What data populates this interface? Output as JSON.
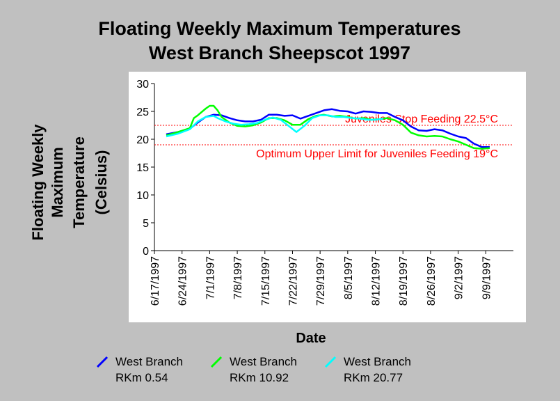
{
  "chart_data": {
    "type": "line",
    "title": [
      "Floating Weekly Maximum Temperatures",
      "West Branch Sheepscot 1997"
    ],
    "ylabel": [
      "Floating Weekly",
      "Maximum",
      "Temperature",
      "(Celsius)"
    ],
    "xlabel": "Date",
    "ylim": [
      0,
      30
    ],
    "yticks": [
      0,
      5,
      10,
      15,
      20,
      25,
      30
    ],
    "xlim": [
      "1997-06-17",
      "1997-09-16"
    ],
    "xticks": [
      {
        "date": "1997-06-17",
        "label": "6/17/1997"
      },
      {
        "date": "1997-06-24",
        "label": "6/24/1997"
      },
      {
        "date": "1997-07-01",
        "label": "7/1/1997"
      },
      {
        "date": "1997-07-08",
        "label": "7/8/1997"
      },
      {
        "date": "1997-07-15",
        "label": "7/15/1997"
      },
      {
        "date": "1997-07-22",
        "label": "7/22/1997"
      },
      {
        "date": "1997-07-29",
        "label": "7/29/1997"
      },
      {
        "date": "1997-08-05",
        "label": "8/5/1997"
      },
      {
        "date": "1997-08-12",
        "label": "8/12/1997"
      },
      {
        "date": "1997-08-19",
        "label": "8/19/1997"
      },
      {
        "date": "1997-08-26",
        "label": "8/26/1997"
      },
      {
        "date": "1997-09-02",
        "label": "9/2/1997"
      },
      {
        "date": "1997-09-09",
        "label": "9/9/1997"
      }
    ],
    "grid": false,
    "legend_position": "bottom",
    "reference_lines": [
      {
        "y": 22.5,
        "label": "Juveniles Stop Feeding 22.5°C",
        "color": "#ff0000"
      },
      {
        "y": 19,
        "label": "Optimum Upper Limit for Juveniles Feeding 19°C",
        "color": "#ff0000"
      }
    ],
    "series": [
      {
        "name": [
          "West Branch",
          "RKm 0.54"
        ],
        "color": "#0000ff",
        "points": [
          [
            "1997-06-20",
            20.9
          ],
          [
            "1997-06-23",
            21.3
          ],
          [
            "1997-06-25",
            21.7
          ],
          [
            "1997-06-26",
            21.9
          ],
          [
            "1997-06-28",
            23.0
          ],
          [
            "1997-06-30",
            24.0
          ],
          [
            "1997-07-02",
            24.4
          ],
          [
            "1997-07-04",
            24.3
          ],
          [
            "1997-07-06",
            23.8
          ],
          [
            "1997-07-08",
            23.4
          ],
          [
            "1997-07-10",
            23.2
          ],
          [
            "1997-07-12",
            23.2
          ],
          [
            "1997-07-14",
            23.5
          ],
          [
            "1997-07-16",
            24.4
          ],
          [
            "1997-07-18",
            24.4
          ],
          [
            "1997-07-20",
            24.2
          ],
          [
            "1997-07-22",
            24.3
          ],
          [
            "1997-07-24",
            23.7
          ],
          [
            "1997-07-26",
            24.2
          ],
          [
            "1997-07-28",
            24.7
          ],
          [
            "1997-07-30",
            25.2
          ],
          [
            "1997-08-01",
            25.4
          ],
          [
            "1997-08-03",
            25.1
          ],
          [
            "1997-08-05",
            25.0
          ],
          [
            "1997-08-07",
            24.6
          ],
          [
            "1997-08-09",
            25.0
          ],
          [
            "1997-08-11",
            24.9
          ],
          [
            "1997-08-13",
            24.7
          ],
          [
            "1997-08-15",
            24.7
          ],
          [
            "1997-08-17",
            24.0
          ],
          [
            "1997-08-19",
            23.4
          ],
          [
            "1997-08-21",
            22.3
          ],
          [
            "1997-08-23",
            21.6
          ],
          [
            "1997-08-25",
            21.5
          ],
          [
            "1997-08-27",
            21.8
          ],
          [
            "1997-08-29",
            21.6
          ],
          [
            "1997-08-31",
            21.0
          ],
          [
            "1997-09-02",
            20.5
          ],
          [
            "1997-09-04",
            20.2
          ],
          [
            "1997-09-06",
            19.2
          ],
          [
            "1997-09-08",
            18.6
          ],
          [
            "1997-09-10",
            18.6
          ]
        ]
      },
      {
        "name": [
          "West Branch",
          "RKm 10.92"
        ],
        "color": "#00ff00",
        "points": [
          [
            "1997-06-20",
            20.7
          ],
          [
            "1997-06-23",
            21.3
          ],
          [
            "1997-06-26",
            22.0
          ],
          [
            "1997-06-27",
            23.8
          ],
          [
            "1997-06-28",
            24.3
          ],
          [
            "1997-06-30",
            25.5
          ],
          [
            "1997-07-01",
            26.0
          ],
          [
            "1997-07-02",
            26.0
          ],
          [
            "1997-07-03",
            25.2
          ],
          [
            "1997-07-04",
            24.0
          ],
          [
            "1997-07-06",
            23.0
          ],
          [
            "1997-07-08",
            22.4
          ],
          [
            "1997-07-10",
            22.3
          ],
          [
            "1997-07-12",
            22.5
          ],
          [
            "1997-07-14",
            23.0
          ],
          [
            "1997-07-16",
            23.8
          ],
          [
            "1997-07-18",
            23.8
          ],
          [
            "1997-07-20",
            23.4
          ],
          [
            "1997-07-22",
            22.6
          ],
          [
            "1997-07-24",
            22.6
          ],
          [
            "1997-07-26",
            23.6
          ],
          [
            "1997-07-28",
            24.2
          ],
          [
            "1997-07-30",
            24.4
          ],
          [
            "1997-08-01",
            24.1
          ],
          [
            "1997-08-03",
            24.2
          ],
          [
            "1997-08-05",
            24.0
          ],
          [
            "1997-08-07",
            23.7
          ],
          [
            "1997-08-09",
            23.8
          ],
          [
            "1997-08-11",
            23.5
          ],
          [
            "1997-08-13",
            23.6
          ],
          [
            "1997-08-15",
            23.8
          ],
          [
            "1997-08-17",
            23.4
          ],
          [
            "1997-08-19",
            22.6
          ],
          [
            "1997-08-21",
            21.2
          ],
          [
            "1997-08-23",
            20.7
          ],
          [
            "1997-08-25",
            20.5
          ],
          [
            "1997-08-27",
            20.6
          ],
          [
            "1997-08-29",
            20.5
          ],
          [
            "1997-08-31",
            20.0
          ],
          [
            "1997-09-02",
            19.6
          ],
          [
            "1997-09-04",
            19.0
          ],
          [
            "1997-09-06",
            18.4
          ],
          [
            "1997-09-08",
            18.3
          ],
          [
            "1997-09-10",
            18.4
          ]
        ]
      },
      {
        "name": [
          "West Branch",
          "RKm 20.77"
        ],
        "color": "#00ffff",
        "points": [
          [
            "1997-06-20",
            20.5
          ],
          [
            "1997-06-23",
            21.0
          ],
          [
            "1997-06-26",
            21.8
          ],
          [
            "1997-06-28",
            23.2
          ],
          [
            "1997-06-30",
            24.0
          ],
          [
            "1997-07-02",
            24.2
          ],
          [
            "1997-07-03",
            23.8
          ],
          [
            "1997-07-05",
            23.2
          ],
          [
            "1997-07-07",
            22.8
          ],
          [
            "1997-07-09",
            22.6
          ],
          [
            "1997-07-11",
            22.7
          ],
          [
            "1997-07-13",
            22.9
          ],
          [
            "1997-07-15",
            23.5
          ],
          [
            "1997-07-17",
            23.9
          ],
          [
            "1997-07-19",
            23.5
          ],
          [
            "1997-07-21",
            22.4
          ],
          [
            "1997-07-23",
            21.3
          ],
          [
            "1997-07-25",
            22.4
          ],
          [
            "1997-07-27",
            23.8
          ],
          [
            "1997-07-29",
            24.3
          ],
          [
            "1997-07-31",
            24.3
          ],
          [
            "1997-08-02",
            24.0
          ],
          [
            "1997-08-04",
            24.0
          ],
          [
            "1997-08-06",
            23.8
          ],
          [
            "1997-08-08",
            23.7
          ],
          [
            "1997-08-10",
            23.5
          ],
          [
            "1997-08-12",
            23.5
          ],
          [
            "1997-08-14",
            23.7
          ]
        ]
      }
    ]
  }
}
